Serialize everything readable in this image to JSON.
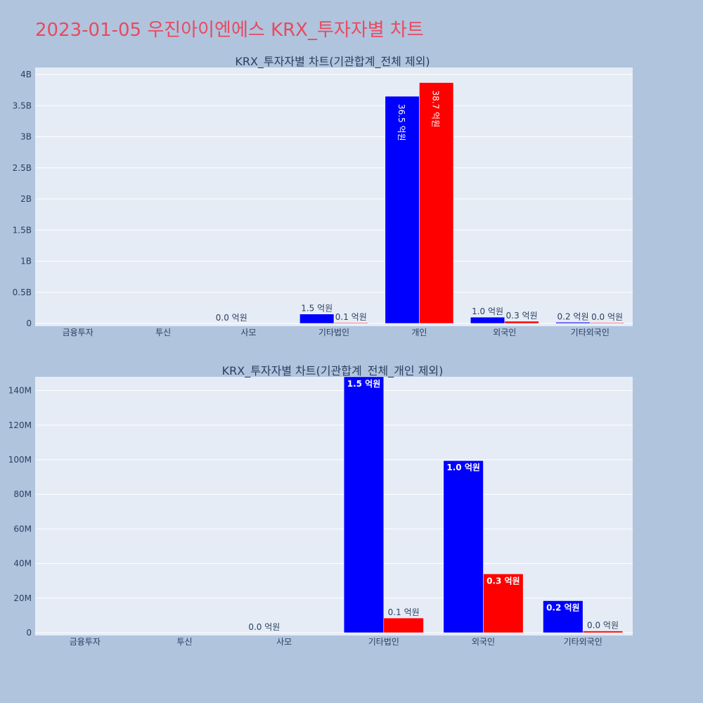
{
  "page_title": "2023-01-05 우진아이엔에스 KRX_투자자별 차트",
  "colors": {
    "series_a": "#0000ff",
    "series_b": "#ff0000",
    "plot_bg": "#e5ecf6",
    "page_bg": "#b0c4de",
    "title": "#e84a5f"
  },
  "chart_data": [
    {
      "type": "bar",
      "title": "KRX_투자자별 차트(기관합계_전체 제외)",
      "categories": [
        "금융투자",
        "투신",
        "사모",
        "기타법인",
        "개인",
        "외국인",
        "기타외국인"
      ],
      "ylim": [
        0,
        4000000000
      ],
      "yticks": [
        0,
        500000000,
        1000000000,
        1500000000,
        2000000000,
        2500000000,
        3000000000,
        3500000000,
        4000000000
      ],
      "ytick_labels": [
        "0",
        "0.5B",
        "1B",
        "1.5B",
        "2B",
        "2.5B",
        "3B",
        "3.5B",
        "4B"
      ],
      "series": [
        {
          "values": [
            0,
            0,
            0,
            150000000,
            3650000000,
            100000000,
            18000000
          ],
          "labels": [
            "",
            "",
            "0.0 억원",
            "1.5 억원",
            "36.5 억원",
            "1.0 억원",
            "0.2 억원"
          ]
        },
        {
          "values": [
            0,
            0,
            0,
            8000000,
            3870000000,
            34000000,
            1000000
          ],
          "labels": [
            "",
            "",
            "",
            "0.1 억원",
            "38.7 억원",
            "0.3 억원",
            "0.0 억원"
          ]
        }
      ],
      "grid": true
    },
    {
      "type": "bar",
      "title": "KRX_투자자별 차트(기관합계_전체_개인 제외)",
      "categories": [
        "금융투자",
        "투신",
        "사모",
        "기타법인",
        "외국인",
        "기타외국인"
      ],
      "ylim": [
        0,
        150000000
      ],
      "yticks": [
        0,
        20000000,
        40000000,
        60000000,
        80000000,
        100000000,
        120000000,
        140000000
      ],
      "ytick_labels": [
        "0",
        "20M",
        "40M",
        "60M",
        "80M",
        "100M",
        "120M",
        "140M"
      ],
      "series": [
        {
          "values": [
            0,
            0,
            0,
            148000000,
            99500000,
            18500000
          ],
          "labels": [
            "",
            "",
            "0.0 억원",
            "1.5 억원",
            "1.0 억원",
            "0.2 억원"
          ]
        },
        {
          "values": [
            0,
            0,
            0,
            8500000,
            34000000,
            1000000
          ],
          "labels": [
            "",
            "",
            "",
            "0.1 억원",
            "0.3 억원",
            "0.0 억원"
          ]
        }
      ],
      "grid": true
    }
  ]
}
